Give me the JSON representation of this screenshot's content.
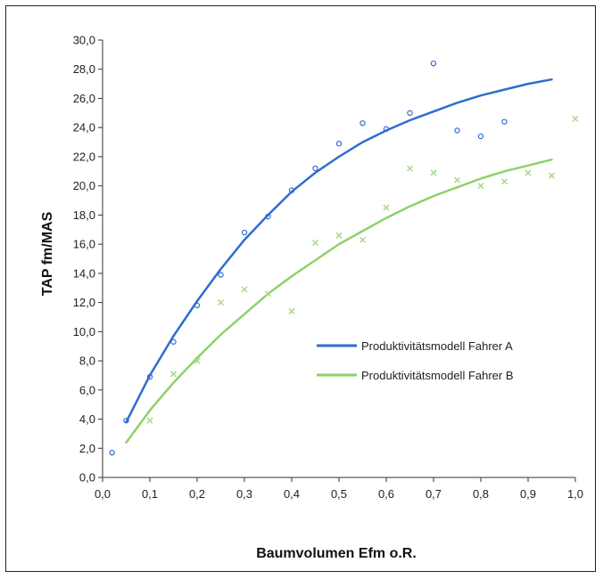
{
  "chart_data": {
    "type": "scatter",
    "xlabel": "Baumvolumen Efm o.R.",
    "ylabel": "TAP fm/MAS",
    "xlim": [
      0,
      1.0
    ],
    "ylim": [
      0,
      30
    ],
    "x_ticks": [
      "0,0",
      "0,1",
      "0,2",
      "0,3",
      "0,4",
      "0,5",
      "0,6",
      "0,7",
      "0,8",
      "0,9",
      "1,0"
    ],
    "y_ticks": [
      "0,0",
      "2,0",
      "4,0",
      "6,0",
      "8,0",
      "10,0",
      "12,0",
      "14,0",
      "16,0",
      "18,0",
      "20,0",
      "22,0",
      "24,0",
      "26,0",
      "28,0",
      "30,0"
    ],
    "grid": false,
    "legend_position": "right-middle",
    "series": [
      {
        "name": "Produktivitätsmodell Fahrer A",
        "kind": "line",
        "color": "#2f6dd0",
        "x": [
          0.05,
          0.1,
          0.15,
          0.2,
          0.25,
          0.3,
          0.35,
          0.4,
          0.45,
          0.5,
          0.55,
          0.6,
          0.65,
          0.7,
          0.75,
          0.8,
          0.85,
          0.9,
          0.95
        ],
        "y": [
          3.8,
          7.0,
          9.7,
          12.1,
          14.3,
          16.3,
          18.0,
          19.6,
          20.9,
          22.0,
          23.0,
          23.8,
          24.5,
          25.1,
          25.7,
          26.2,
          26.6,
          27.0,
          27.3
        ]
      },
      {
        "name": "",
        "kind": "scatter",
        "marker": "circle",
        "color": "#2f6dd0",
        "x": [
          0.02,
          0.05,
          0.1,
          0.15,
          0.2,
          0.25,
          0.3,
          0.35,
          0.4,
          0.45,
          0.5,
          0.55,
          0.6,
          0.65,
          0.7,
          0.75,
          0.8,
          0.85
        ],
        "y": [
          1.7,
          3.9,
          6.9,
          9.3,
          11.8,
          13.9,
          16.8,
          17.9,
          19.7,
          21.2,
          22.9,
          24.3,
          23.9,
          25.0,
          28.4,
          23.8,
          23.4,
          24.4
        ]
      },
      {
        "name": "Produktivitätsmodell Fahrer B",
        "kind": "line",
        "color": "#8ed16a",
        "x": [
          0.05,
          0.1,
          0.15,
          0.2,
          0.25,
          0.3,
          0.35,
          0.4,
          0.45,
          0.5,
          0.55,
          0.6,
          0.65,
          0.7,
          0.75,
          0.8,
          0.85,
          0.9,
          0.95
        ],
        "y": [
          2.4,
          4.6,
          6.5,
          8.2,
          9.8,
          11.2,
          12.6,
          13.8,
          14.9,
          16.0,
          16.9,
          17.8,
          18.6,
          19.3,
          19.9,
          20.5,
          21.0,
          21.4,
          21.8
        ]
      },
      {
        "name": "",
        "kind": "scatter",
        "marker": "x",
        "color": "#a8d88a",
        "x": [
          0.1,
          0.15,
          0.2,
          0.25,
          0.3,
          0.35,
          0.4,
          0.45,
          0.5,
          0.55,
          0.6,
          0.65,
          0.7,
          0.75,
          0.8,
          0.85,
          0.9,
          0.95,
          1.0
        ],
        "y": [
          3.9,
          7.1,
          8.0,
          12.0,
          12.9,
          12.6,
          11.4,
          16.1,
          16.6,
          16.3,
          18.5,
          21.2,
          20.9,
          20.4,
          20.0,
          20.3,
          20.9,
          20.7,
          24.6
        ]
      }
    ]
  }
}
